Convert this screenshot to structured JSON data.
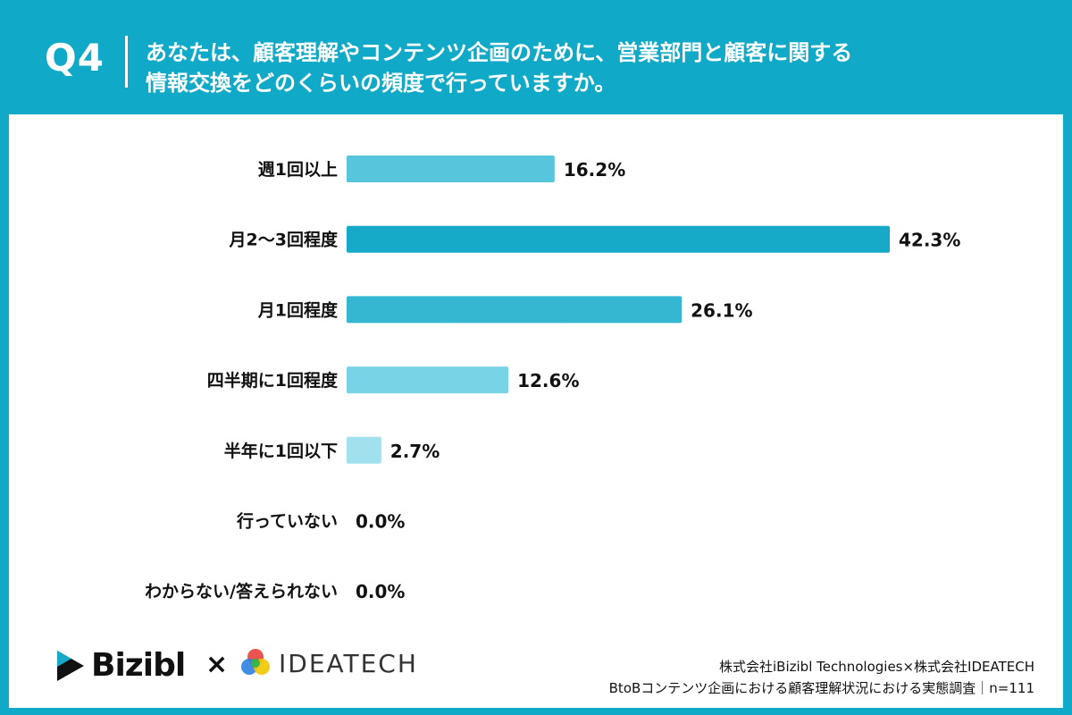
{
  "header": {
    "question_number": "Q4",
    "question_line1": "あなたは、顧客理解やコンテンツ企画のために、営業部門と顧客に関する",
    "question_line2": "情報交換をどのくらいの頻度で行っていますか。"
  },
  "chart_data": {
    "type": "bar",
    "orientation": "horizontal",
    "categories": [
      "週1回以上",
      "月2〜3回程度",
      "月1回程度",
      "四半期に1回程度",
      "半年に1回以下",
      "行っていない",
      "わからない/答えられない"
    ],
    "values": [
      16.2,
      42.3,
      26.1,
      12.6,
      2.7,
      0.0,
      0.0
    ],
    "value_labels": [
      "16.2%",
      "42.3%",
      "26.1%",
      "12.6%",
      "2.7%",
      "0.0%",
      "0.0%"
    ],
    "bar_colors": [
      "#57c5dc",
      "#16aac8",
      "#35b7d2",
      "#79d3e6",
      "#a3e0ee",
      "#a3e0ee",
      "#a3e0ee"
    ],
    "xlim": [
      0,
      42.3
    ],
    "grid": false
  },
  "footer": {
    "logo1_text": "Bizibl",
    "times_sign": "×",
    "logo2_text": "IDEATECH",
    "source_line1": "株式会社iBizibl Technologies×株式会社IDEATECH",
    "source_line2": "BtoBコンテンツ企画における顧客理解状況における実態調査｜n=111"
  },
  "colors": {
    "background": "#10a9c7",
    "card": "#ffffff"
  }
}
